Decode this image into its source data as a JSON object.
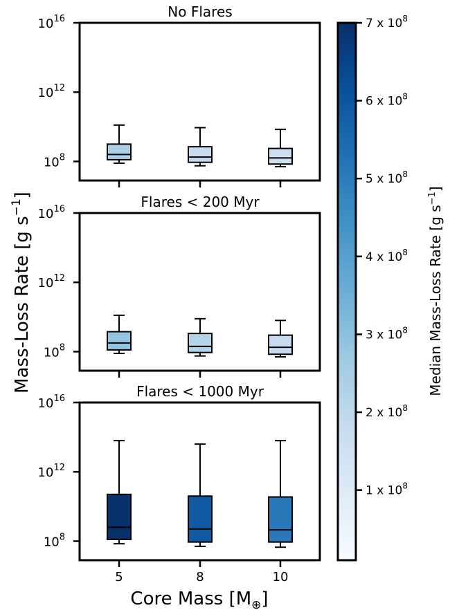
{
  "figure": {
    "ylabel": "Mass-Loss Rate [g s",
    "ylabel_sup": "−1",
    "ylabel_end": "]",
    "xlabel": "Core Mass [M",
    "xlabel_sub": "⊕",
    "xlabel_end": "]"
  },
  "chart_data": [
    {
      "type": "box",
      "title": "No Flares",
      "categories": [
        "5",
        "8",
        "10"
      ],
      "y_scale": "log",
      "ylim_exp": [
        6.9,
        16
      ],
      "yticks": [
        {
          "base": "10",
          "exp": "8",
          "value_exp": 8
        },
        {
          "base": "10",
          "exp": "12",
          "value_exp": 12
        },
        {
          "base": "10",
          "exp": "16",
          "value_exp": 16
        }
      ],
      "show_xticklabels": false,
      "boxes": [
        {
          "category": "5",
          "whislo_exp": 7.9,
          "q1_exp": 8.1,
          "median_exp": 8.4,
          "q3_exp": 9.0,
          "whishi_exp": 10.1,
          "median_rate": 250000000,
          "color": "#abd0e6"
        },
        {
          "category": "8",
          "whislo_exp": 7.75,
          "q1_exp": 7.95,
          "median_exp": 8.25,
          "q3_exp": 8.85,
          "whishi_exp": 9.95,
          "median_rate": 180000000,
          "color": "#c6dbef"
        },
        {
          "category": "10",
          "whislo_exp": 7.7,
          "q1_exp": 7.85,
          "median_exp": 8.2,
          "q3_exp": 8.75,
          "whishi_exp": 9.85,
          "median_rate": 160000000,
          "color": "#cddff1"
        }
      ]
    },
    {
      "type": "box",
      "title": "Flares < 200 Myr",
      "categories": [
        "5",
        "8",
        "10"
      ],
      "y_scale": "log",
      "ylim_exp": [
        6.9,
        16
      ],
      "yticks": [
        {
          "base": "10",
          "exp": "8",
          "value_exp": 8
        },
        {
          "base": "10",
          "exp": "12",
          "value_exp": 12
        },
        {
          "base": "10",
          "exp": "16",
          "value_exp": 16
        }
      ],
      "show_xticklabels": false,
      "boxes": [
        {
          "category": "5",
          "whislo_exp": 7.9,
          "q1_exp": 8.1,
          "median_exp": 8.5,
          "q3_exp": 9.15,
          "whishi_exp": 10.1,
          "median_rate": 320000000,
          "color": "#94c4df"
        },
        {
          "category": "8",
          "whislo_exp": 7.75,
          "q1_exp": 7.95,
          "median_exp": 8.3,
          "q3_exp": 9.05,
          "whishi_exp": 9.9,
          "median_rate": 220000000,
          "color": "#b3d3e8"
        },
        {
          "category": "10",
          "whislo_exp": 7.7,
          "q1_exp": 7.85,
          "median_exp": 8.25,
          "q3_exp": 8.95,
          "whishi_exp": 9.8,
          "median_rate": 180000000,
          "color": "#c6dbef"
        }
      ]
    },
    {
      "type": "box",
      "title": "Flares < 1000 Myr",
      "categories": [
        "5",
        "8",
        "10"
      ],
      "y_scale": "log",
      "ylim_exp": [
        6.9,
        16
      ],
      "yticks": [
        {
          "base": "10",
          "exp": "8",
          "value_exp": 8
        },
        {
          "base": "10",
          "exp": "12",
          "value_exp": 12
        },
        {
          "base": "10",
          "exp": "16",
          "value_exp": 16
        }
      ],
      "show_xticklabels": true,
      "boxes": [
        {
          "category": "5",
          "whislo_exp": 7.85,
          "q1_exp": 8.1,
          "median_exp": 8.8,
          "q3_exp": 10.7,
          "whishi_exp": 13.8,
          "median_rate": 700000000,
          "color": "#08306b"
        },
        {
          "category": "8",
          "whislo_exp": 7.7,
          "q1_exp": 7.95,
          "median_exp": 8.7,
          "q3_exp": 10.6,
          "whishi_exp": 13.6,
          "median_rate": 550000000,
          "color": "#0f5aa3"
        },
        {
          "category": "10",
          "whislo_exp": 7.65,
          "q1_exp": 7.95,
          "median_exp": 8.65,
          "q3_exp": 10.55,
          "whishi_exp": 13.8,
          "median_rate": 450000000,
          "color": "#2a77b9"
        }
      ]
    },
    {
      "type": "colorbar",
      "label": "Median Mass-Loss Rate [g s",
      "label_sup": "−1",
      "label_end": "]",
      "range": [
        10000000,
        700000000
      ],
      "colormap": [
        "#f7fbff",
        "#deebf7",
        "#c6dbef",
        "#9ecae1",
        "#6baed6",
        "#4292c6",
        "#2171b5",
        "#08519c",
        "#08306b"
      ],
      "ticks": [
        {
          "value": 100000000,
          "mant": "1 x 10",
          "exp": "8"
        },
        {
          "value": 200000000,
          "mant": "2 x 10",
          "exp": "8"
        },
        {
          "value": 300000000,
          "mant": "3 x 10",
          "exp": "8"
        },
        {
          "value": 400000000,
          "mant": "4 x 10",
          "exp": "8"
        },
        {
          "value": 500000000,
          "mant": "5 x 10",
          "exp": "8"
        },
        {
          "value": 600000000,
          "mant": "6 x 10",
          "exp": "8"
        },
        {
          "value": 700000000,
          "mant": "7 x 10",
          "exp": "8"
        }
      ]
    }
  ]
}
